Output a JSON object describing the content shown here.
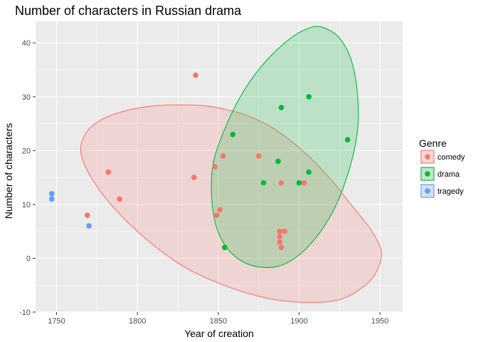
{
  "chart_data": {
    "type": "scatter",
    "title": "Number of characters in Russian drama",
    "xlabel": "Year of creation",
    "ylabel": "Number of characters",
    "xlim": [
      1737,
      1964
    ],
    "ylim": [
      -10,
      44
    ],
    "xticks": [
      1750,
      1800,
      1850,
      1900,
      1950
    ],
    "yticks": [
      -10,
      0,
      10,
      20,
      30,
      40
    ],
    "grid": true,
    "legend": {
      "title": "Genre",
      "position": "right"
    },
    "series": [
      {
        "name": "comedy",
        "color": "#F8766D",
        "points": [
          {
            "x": 1769,
            "y": 8
          },
          {
            "x": 1782,
            "y": 16
          },
          {
            "x": 1789,
            "y": 11
          },
          {
            "x": 1835,
            "y": 15
          },
          {
            "x": 1836,
            "y": 34
          },
          {
            "x": 1848,
            "y": 17
          },
          {
            "x": 1849,
            "y": 8
          },
          {
            "x": 1851,
            "y": 9
          },
          {
            "x": 1853,
            "y": 19
          },
          {
            "x": 1875,
            "y": 19
          },
          {
            "x": 1888,
            "y": 5
          },
          {
            "x": 1888,
            "y": 4
          },
          {
            "x": 1888,
            "y": 3
          },
          {
            "x": 1889,
            "y": 2
          },
          {
            "x": 1889,
            "y": 14
          },
          {
            "x": 1891,
            "y": 5
          },
          {
            "x": 1903,
            "y": 14
          }
        ],
        "ellipse": [
          [
            1826,
            28.5
          ],
          [
            1842,
            28.3
          ],
          [
            1858,
            27.4
          ],
          [
            1875,
            25.6
          ],
          [
            1891,
            22.7
          ],
          [
            1906,
            18.9
          ],
          [
            1920,
            14.5
          ],
          [
            1932,
            10.0
          ],
          [
            1942,
            6.3
          ],
          [
            1948,
            3.5
          ],
          [
            1951,
            0.5
          ],
          [
            1946,
            -3.4
          ],
          [
            1935,
            -6.3
          ],
          [
            1922,
            -7.9
          ],
          [
            1903,
            -8.2
          ],
          [
            1880,
            -7.4
          ],
          [
            1856,
            -5.3
          ],
          [
            1830,
            -1.8
          ],
          [
            1806,
            3.4
          ],
          [
            1785,
            9.5
          ],
          [
            1771,
            15.2
          ],
          [
            1765,
            19.7
          ],
          [
            1768,
            23.2
          ],
          [
            1778,
            25.8
          ],
          [
            1794,
            27.5
          ],
          [
            1810,
            28.3
          ]
        ]
      },
      {
        "name": "drama",
        "color": "#00BA38",
        "points": [
          {
            "x": 1854,
            "y": 2
          },
          {
            "x": 1859,
            "y": 23
          },
          {
            "x": 1878,
            "y": 14
          },
          {
            "x": 1887,
            "y": 18
          },
          {
            "x": 1889,
            "y": 28
          },
          {
            "x": 1900,
            "y": 14
          },
          {
            "x": 1906,
            "y": 30
          },
          {
            "x": 1906,
            "y": 16
          },
          {
            "x": 1930,
            "y": 22
          }
        ],
        "ellipse": [
          [
            1913,
            43.0
          ],
          [
            1924,
            41.2
          ],
          [
            1932,
            37.0
          ],
          [
            1936,
            30.8
          ],
          [
            1936,
            23.5
          ],
          [
            1930,
            15.5
          ],
          [
            1920,
            8.2
          ],
          [
            1906,
            2.3
          ],
          [
            1890,
            -1.2
          ],
          [
            1873,
            -1.5
          ],
          [
            1859,
            0.7
          ],
          [
            1850,
            4.8
          ],
          [
            1846,
            10.9
          ],
          [
            1847,
            17.8
          ],
          [
            1855,
            24.7
          ],
          [
            1866,
            31.2
          ],
          [
            1880,
            36.8
          ],
          [
            1894,
            40.7
          ],
          [
            1904,
            42.5
          ]
        ]
      },
      {
        "name": "tragedy",
        "color": "#619CFF",
        "points": [
          {
            "x": 1747,
            "y": 12
          },
          {
            "x": 1747,
            "y": 11
          },
          {
            "x": 1770,
            "y": 6
          }
        ]
      }
    ]
  }
}
